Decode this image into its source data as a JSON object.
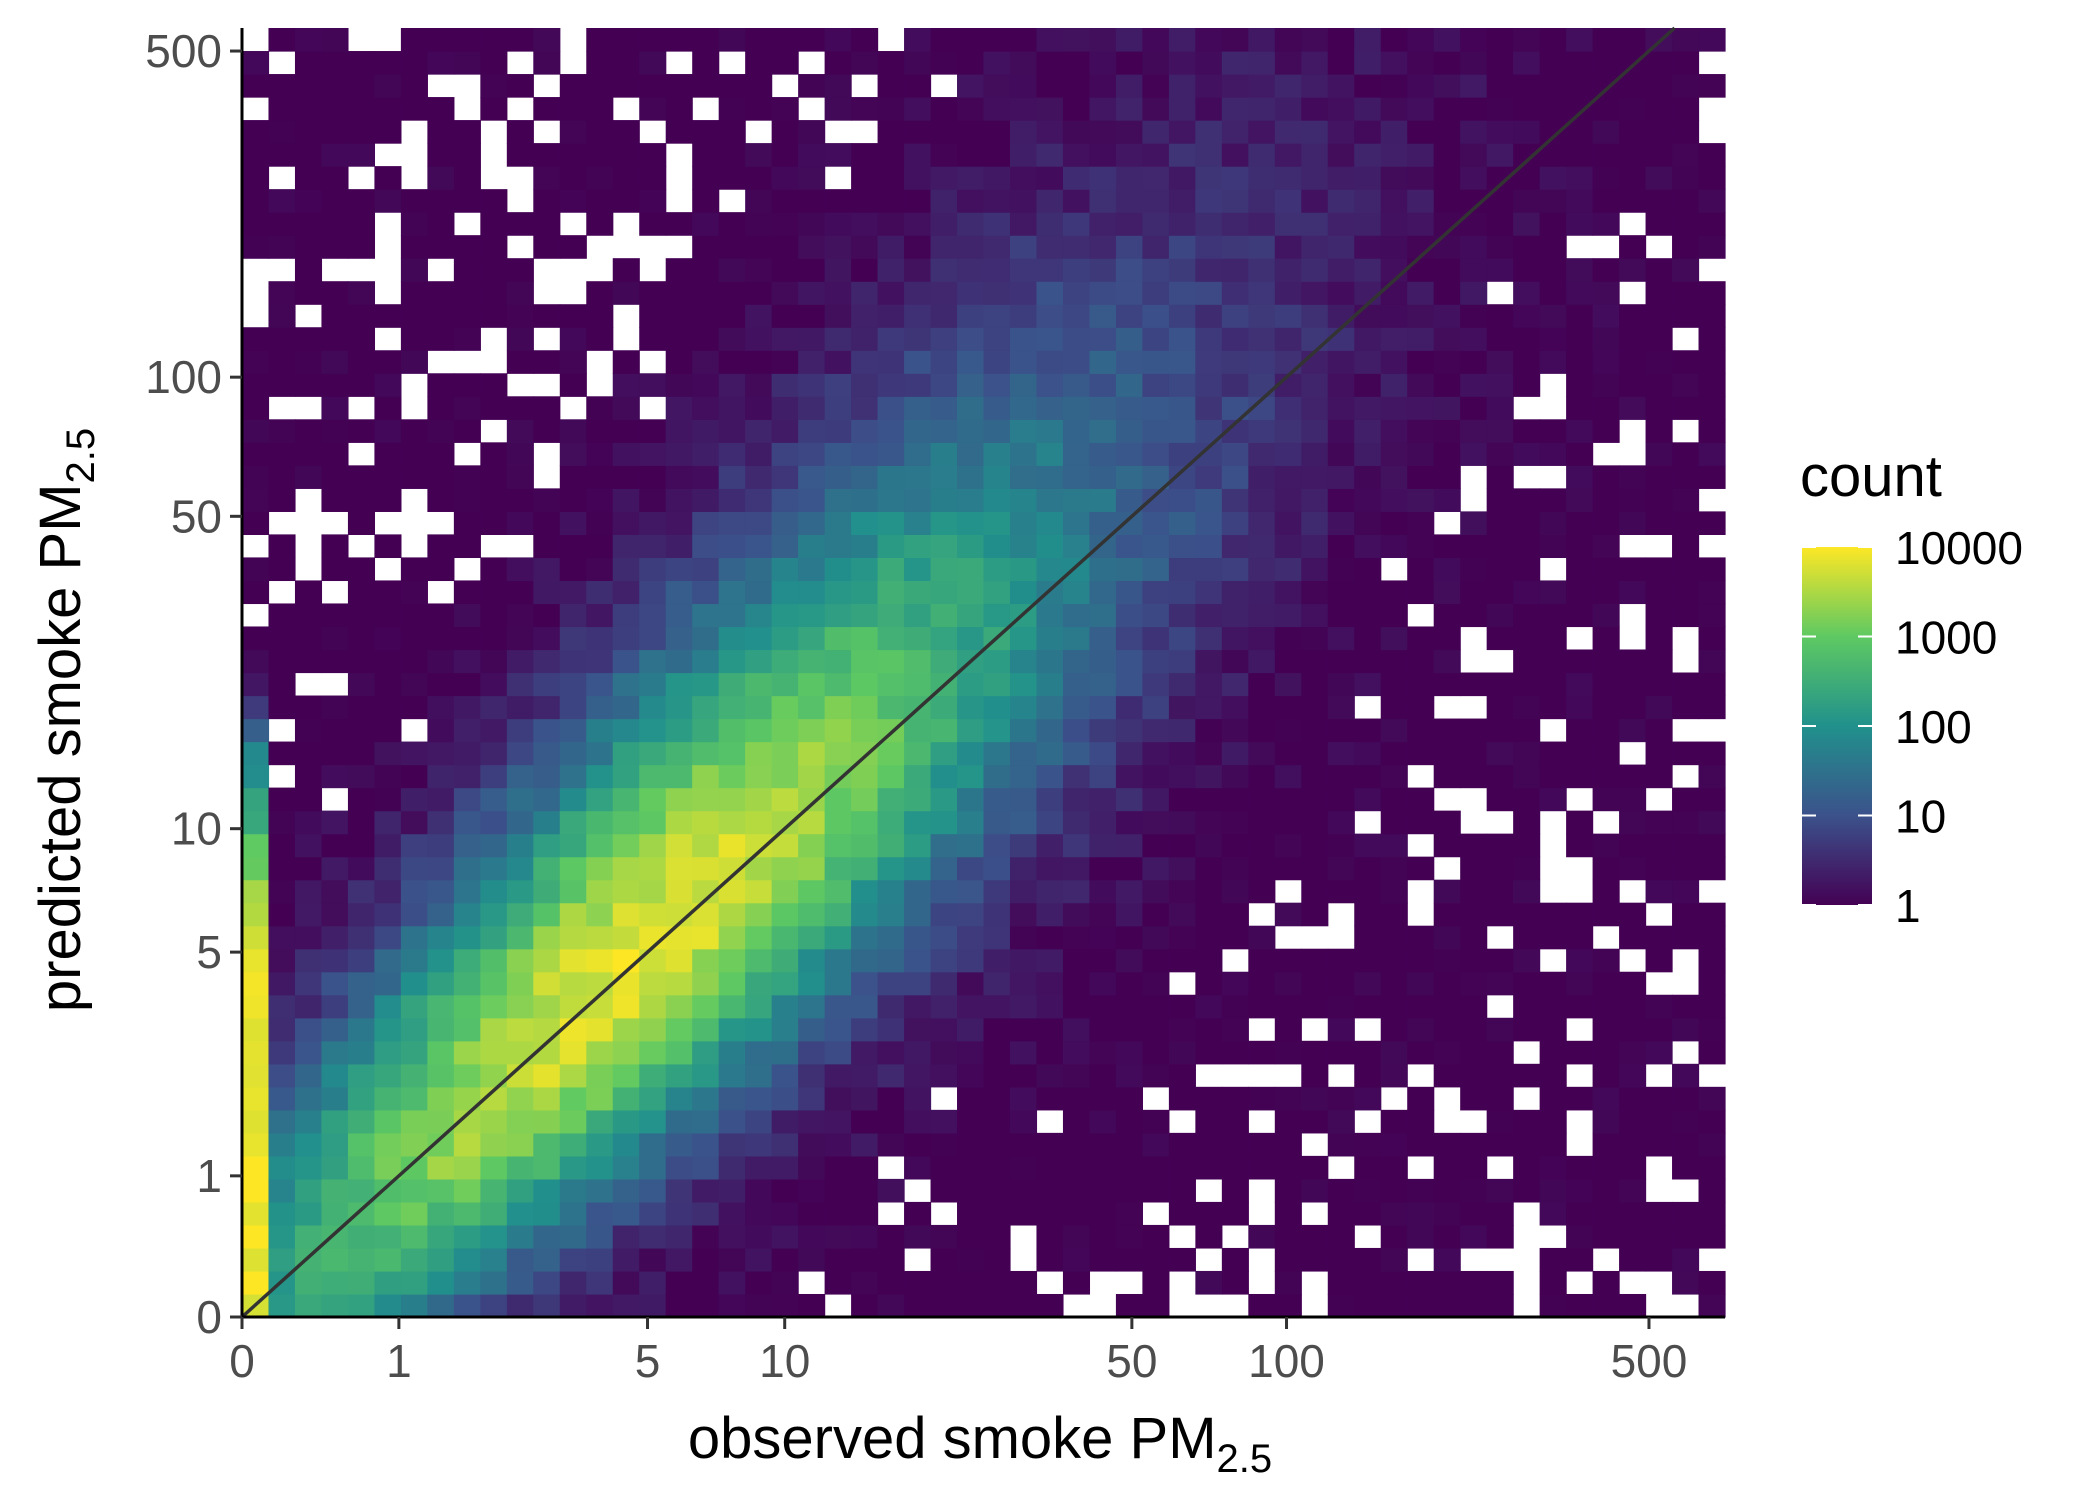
{
  "chart_data": {
    "type": "heatmap",
    "x_scale": "pseudo-log",
    "y_scale": "pseudo-log",
    "xlabel": {
      "main": "observed smoke PM",
      "sub": "2.5"
    },
    "ylabel": {
      "main": "predicted smoke PM",
      "sub": "2.5"
    },
    "xlim": [
      0,
      700
    ],
    "ylim": [
      0,
      560
    ],
    "x_ticks": [
      {
        "value": 0,
        "label": "0"
      },
      {
        "value": 1,
        "label": "1"
      },
      {
        "value": 5,
        "label": "5"
      },
      {
        "value": 10,
        "label": "10"
      },
      {
        "value": 50,
        "label": "50"
      },
      {
        "value": 100,
        "label": "100"
      },
      {
        "value": 500,
        "label": "500"
      }
    ],
    "y_ticks": [
      {
        "value": 0,
        "label": "0"
      },
      {
        "value": 1,
        "label": "1"
      },
      {
        "value": 5,
        "label": "5"
      },
      {
        "value": 10,
        "label": "10"
      },
      {
        "value": 50,
        "label": "50"
      },
      {
        "value": 100,
        "label": "100"
      },
      {
        "value": 500,
        "label": "500"
      }
    ],
    "reference_line": "y = x",
    "bins": "approximately 55 x 55 bins on the transformed scale; empty bins left blank",
    "counts_profile": {
      "peak_count": 10000,
      "ridge": "highest densities near the 1:1 line between observed 1 and 30, brightest column at observed 0",
      "spread_above_line": "wider spread of predictions above the line at low observed values",
      "spread_below_line": "sparse cells below the line at high observed values"
    },
    "legend": {
      "title": "count",
      "scale": "log",
      "position": "right",
      "breaks": [
        {
          "value": 10000,
          "label": "10000"
        },
        {
          "value": 1000,
          "label": "1000"
        },
        {
          "value": 100,
          "label": "100"
        },
        {
          "value": 10,
          "label": "10"
        },
        {
          "value": 1,
          "label": "1"
        }
      ],
      "colormap": "viridis",
      "colors": [
        "#440154",
        "#3b528b",
        "#21918c",
        "#5ec962",
        "#fde725"
      ]
    },
    "grid": false
  }
}
